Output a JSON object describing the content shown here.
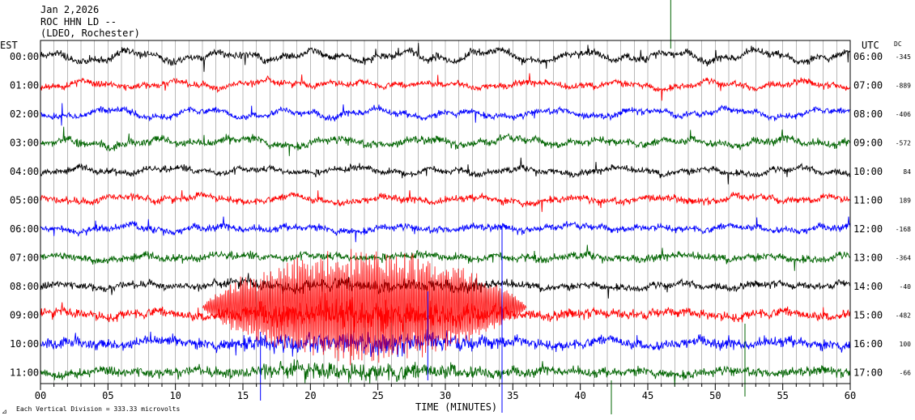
{
  "chart_data": {
    "type": "line",
    "title": "Jan 2,2026",
    "station": "ROC HHN LD --",
    "location": "(LDEO, Rochester)",
    "left_axis_label": "EST",
    "right_axis_label": "UTC",
    "dc_label": "DC",
    "xlabel": "TIME (MINUTES)",
    "xlim": [
      0,
      60
    ],
    "x_ticks": [
      "00",
      "05",
      "10",
      "15",
      "20",
      "25",
      "30",
      "35",
      "40",
      "45",
      "50",
      "55",
      "60"
    ],
    "scale_note": "Each Vertical Division =  333.33 microvolts",
    "grid": true,
    "trace_colors": [
      "#000000",
      "#ff0000",
      "#0000ff",
      "#006400"
    ],
    "rows": [
      {
        "est": "00:00",
        "utc": "06:00",
        "dc": "-345",
        "color": "#000000",
        "amplitude": 1.0,
        "wander": 1.1
      },
      {
        "est": "01:00",
        "utc": "07:00",
        "dc": "-889",
        "color": "#ff0000",
        "amplitude": 0.9,
        "wander": 0.7
      },
      {
        "est": "02:00",
        "utc": "08:00",
        "dc": "-406",
        "color": "#0000ff",
        "amplitude": 0.9,
        "wander": 0.8
      },
      {
        "est": "03:00",
        "utc": "09:00",
        "dc": "-572",
        "color": "#006400",
        "amplitude": 1.1,
        "wander": 0.8
      },
      {
        "est": "04:00",
        "utc": "10:00",
        "dc": "84",
        "color": "#000000",
        "amplitude": 0.9,
        "wander": 0.7
      },
      {
        "est": "05:00",
        "utc": "11:00",
        "dc": "189",
        "color": "#ff0000",
        "amplitude": 1.0,
        "wander": 0.6
      },
      {
        "est": "06:00",
        "utc": "12:00",
        "dc": "-168",
        "color": "#0000ff",
        "amplitude": 1.0,
        "wander": 0.5
      },
      {
        "est": "07:00",
        "utc": "13:00",
        "dc": "-364",
        "color": "#006400",
        "amplitude": 1.1,
        "wander": 0.5
      },
      {
        "est": "08:00",
        "utc": "14:00",
        "dc": "-40",
        "color": "#000000",
        "amplitude": 1.0,
        "wander": 0.5
      },
      {
        "est": "09:00",
        "utc": "15:00",
        "dc": "-482",
        "color": "#ff0000",
        "amplitude": 1.4,
        "wander": 0.4
      },
      {
        "est": "10:00",
        "utc": "16:00",
        "dc": "100",
        "color": "#0000ff",
        "amplitude": 1.5,
        "wander": 0.4
      },
      {
        "est": "11:00",
        "utc": "17:00",
        "dc": "-66",
        "color": "#006400",
        "amplitude": 1.3,
        "wander": 0.4
      }
    ],
    "event_window_minutes": [
      12,
      36
    ],
    "event_trace_color": "#ff0000"
  }
}
